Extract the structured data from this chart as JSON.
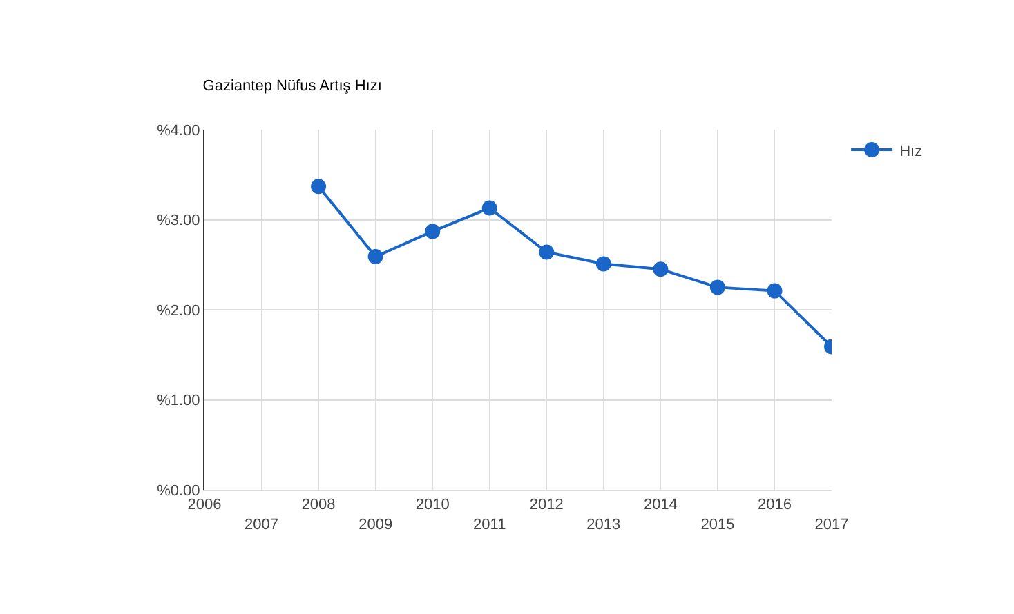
{
  "chart_data": {
    "type": "line",
    "title": "Gaziantep Nüfus Artış Hızı",
    "categories": [
      "2006",
      "2007",
      "2008",
      "2009",
      "2010",
      "2011",
      "2012",
      "2013",
      "2014",
      "2015",
      "2016",
      "2017"
    ],
    "series": [
      {
        "name": "Hız",
        "color": "#1a66c8",
        "values": [
          null,
          null,
          3.37,
          2.59,
          2.87,
          3.13,
          2.64,
          2.51,
          2.45,
          2.25,
          2.21,
          1.59
        ]
      }
    ],
    "ylim": [
      0,
      4
    ],
    "yticks": [
      {
        "value": 0,
        "label": "%0.00"
      },
      {
        "value": 1,
        "label": "%1.00"
      },
      {
        "value": 2,
        "label": "%2.00"
      },
      {
        "value": 3,
        "label": "%3.00"
      },
      {
        "value": 4,
        "label": "%4.00"
      }
    ],
    "grid": true,
    "legend": "top right",
    "marker": "circle",
    "line_style": "solid"
  }
}
